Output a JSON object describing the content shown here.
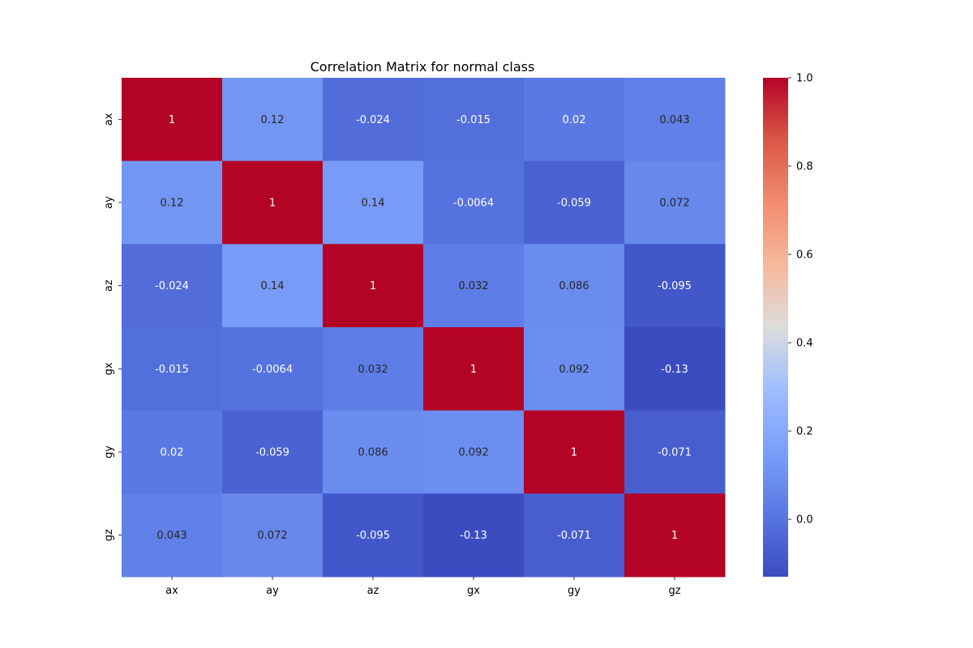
{
  "chart_data": {
    "type": "heatmap",
    "title": "Correlation Matrix for normal class",
    "x_labels": [
      "ax",
      "ay",
      "az",
      "gx",
      "gy",
      "gz"
    ],
    "y_labels": [
      "ax",
      "ay",
      "az",
      "gx",
      "gy",
      "gz"
    ],
    "values": [
      [
        1,
        0.12,
        -0.024,
        -0.015,
        0.02,
        0.043
      ],
      [
        0.12,
        1,
        0.14,
        -0.0064,
        -0.059,
        0.072
      ],
      [
        -0.024,
        0.14,
        1,
        0.032,
        0.086,
        -0.095
      ],
      [
        -0.015,
        -0.0064,
        0.032,
        1,
        0.092,
        -0.13
      ],
      [
        0.02,
        -0.059,
        0.086,
        0.092,
        1,
        -0.071
      ],
      [
        0.043,
        0.072,
        -0.095,
        -0.13,
        -0.071,
        1
      ]
    ],
    "annotations": [
      [
        "1",
        "0.12",
        "-0.024",
        "-0.015",
        "0.02",
        "0.043"
      ],
      [
        "0.12",
        "1",
        "0.14",
        "-0.0064",
        "-0.059",
        "0.072"
      ],
      [
        "-0.024",
        "0.14",
        "1",
        "0.032",
        "0.086",
        "-0.095"
      ],
      [
        "-0.015",
        "-0.0064",
        "0.032",
        "1",
        "0.092",
        "-0.13"
      ],
      [
        "0.02",
        "-0.059",
        "0.086",
        "0.092",
        "1",
        "-0.071"
      ],
      [
        "0.043",
        "0.072",
        "-0.095",
        "-0.13",
        "-0.071",
        "1"
      ]
    ],
    "colormap": "coolwarm",
    "vmin": -0.13,
    "vmax": 1,
    "colorbar": {
      "ticks": [
        0.0,
        0.2,
        0.4,
        0.6,
        0.8,
        1.0
      ],
      "tick_labels": [
        "0.0",
        "0.2",
        "0.4",
        "0.6",
        "0.8",
        "1.0"
      ]
    },
    "grid": false,
    "legend": "colorbar-right"
  }
}
